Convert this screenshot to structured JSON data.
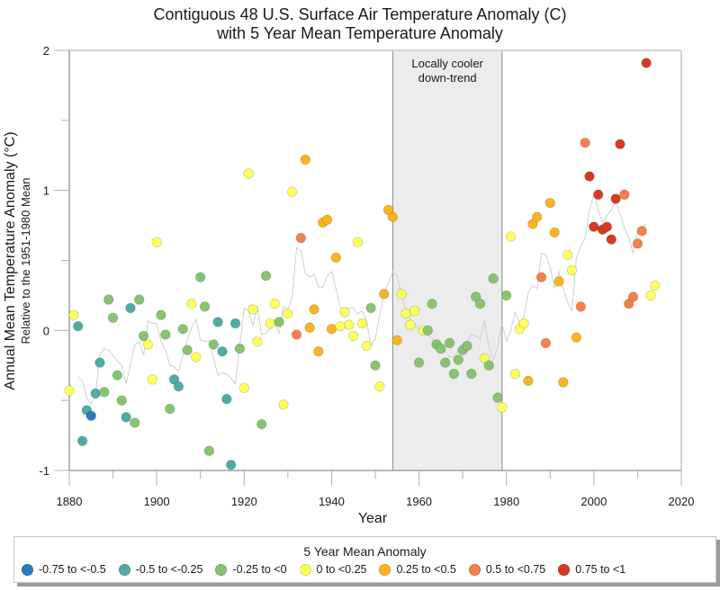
{
  "chart_data": {
    "type": "scatter",
    "title": "Contiguous 48 U.S. Surface Air Temperature Anomaly (C)",
    "subtitle": "with 5 Year Mean Temperature Anomaly",
    "xlabel": "Year",
    "ylabel": "Annual Mean Temperature Anomaly (°C)",
    "ylabel_sub": "Relative to the 1951-1980 Mean",
    "xlim": [
      1880,
      2020
    ],
    "ylim": [
      -1,
      2
    ],
    "x_ticks": [
      "1880",
      "1900",
      "1920",
      "1940",
      "1960",
      "1980",
      "2000",
      "2020"
    ],
    "y_ticks": [
      "-1",
      "0",
      "1",
      "2"
    ],
    "grid": false,
    "annotation": {
      "text_line1": "Locally cooler",
      "text_line2": "down-trend",
      "x_range": [
        1954,
        1979
      ]
    },
    "legend": {
      "title": "5 Year Mean Anomaly",
      "placement": "bottom",
      "items": [
        {
          "label": "-0.75 to <-0.5",
          "color": "#2b7bba"
        },
        {
          "label": "-0.5 to <-0.25",
          "color": "#4eaba6"
        },
        {
          "label": "-0.25 to <0",
          "color": "#87c46f"
        },
        {
          "label": "0 to <0.25",
          "color": "#ffff5e"
        },
        {
          "label": "0.25 to <0.5",
          "color": "#fbb41e"
        },
        {
          "label": "0.5 to <0.75",
          "color": "#f4804b"
        },
        {
          "label": "0.75 to <1",
          "color": "#d73a22"
        }
      ]
    },
    "series": [
      {
        "name": "Annual anomaly",
        "kind": "points",
        "points": [
          {
            "x": 1880,
            "y": -0.43,
            "c": 3
          },
          {
            "x": 1881,
            "y": 0.11,
            "c": 3
          },
          {
            "x": 1882,
            "y": 0.03,
            "c": 1
          },
          {
            "x": 1883,
            "y": -0.79,
            "c": 1
          },
          {
            "x": 1884,
            "y": -0.57,
            "c": 1
          },
          {
            "x": 1885,
            "y": -0.61,
            "c": 0
          },
          {
            "x": 1886,
            "y": -0.45,
            "c": 1
          },
          {
            "x": 1887,
            "y": -0.23,
            "c": 1
          },
          {
            "x": 1888,
            "y": -0.44,
            "c": 2
          },
          {
            "x": 1889,
            "y": 0.22,
            "c": 2
          },
          {
            "x": 1890,
            "y": 0.09,
            "c": 2
          },
          {
            "x": 1891,
            "y": -0.32,
            "c": 2
          },
          {
            "x": 1892,
            "y": -0.5,
            "c": 2
          },
          {
            "x": 1893,
            "y": -0.62,
            "c": 1
          },
          {
            "x": 1894,
            "y": 0.16,
            "c": 1
          },
          {
            "x": 1895,
            "y": -0.66,
            "c": 2
          },
          {
            "x": 1896,
            "y": 0.22,
            "c": 2
          },
          {
            "x": 1897,
            "y": -0.04,
            "c": 2
          },
          {
            "x": 1898,
            "y": -0.1,
            "c": 3
          },
          {
            "x": 1899,
            "y": -0.35,
            "c": 3
          },
          {
            "x": 1900,
            "y": 0.63,
            "c": 3
          },
          {
            "x": 1901,
            "y": 0.11,
            "c": 2
          },
          {
            "x": 1902,
            "y": -0.03,
            "c": 2
          },
          {
            "x": 1903,
            "y": -0.56,
            "c": 2
          },
          {
            "x": 1904,
            "y": -0.35,
            "c": 1
          },
          {
            "x": 1905,
            "y": -0.4,
            "c": 1
          },
          {
            "x": 1906,
            "y": 0.01,
            "c": 2
          },
          {
            "x": 1907,
            "y": -0.14,
            "c": 2
          },
          {
            "x": 1908,
            "y": 0.19,
            "c": 3
          },
          {
            "x": 1909,
            "y": -0.19,
            "c": 3
          },
          {
            "x": 1910,
            "y": 0.38,
            "c": 2
          },
          {
            "x": 1911,
            "y": 0.17,
            "c": 2
          },
          {
            "x": 1912,
            "y": -0.86,
            "c": 2
          },
          {
            "x": 1913,
            "y": -0.1,
            "c": 2
          },
          {
            "x": 1914,
            "y": 0.06,
            "c": 1
          },
          {
            "x": 1915,
            "y": -0.15,
            "c": 1
          },
          {
            "x": 1916,
            "y": -0.49,
            "c": 1
          },
          {
            "x": 1917,
            "y": -0.96,
            "c": 1
          },
          {
            "x": 1918,
            "y": 0.05,
            "c": 1
          },
          {
            "x": 1919,
            "y": -0.13,
            "c": 2
          },
          {
            "x": 1920,
            "y": -0.41,
            "c": 3
          },
          {
            "x": 1921,
            "y": 1.12,
            "c": 3
          },
          {
            "x": 1922,
            "y": 0.15,
            "c": 3
          },
          {
            "x": 1923,
            "y": -0.08,
            "c": 3
          },
          {
            "x": 1924,
            "y": -0.67,
            "c": 2
          },
          {
            "x": 1925,
            "y": 0.39,
            "c": 2
          },
          {
            "x": 1926,
            "y": 0.05,
            "c": 3
          },
          {
            "x": 1927,
            "y": 0.19,
            "c": 3
          },
          {
            "x": 1928,
            "y": 0.06,
            "c": 2
          },
          {
            "x": 1929,
            "y": -0.53,
            "c": 3
          },
          {
            "x": 1930,
            "y": 0.12,
            "c": 3
          },
          {
            "x": 1931,
            "y": 0.99,
            "c": 3
          },
          {
            "x": 1932,
            "y": -0.03,
            "c": 5
          },
          {
            "x": 1933,
            "y": 0.66,
            "c": 5
          },
          {
            "x": 1934,
            "y": 1.22,
            "c": 4
          },
          {
            "x": 1935,
            "y": 0.02,
            "c": 4
          },
          {
            "x": 1936,
            "y": 0.15,
            "c": 4
          },
          {
            "x": 1937,
            "y": -0.15,
            "c": 4
          },
          {
            "x": 1938,
            "y": 0.77,
            "c": 4
          },
          {
            "x": 1939,
            "y": 0.79,
            "c": 4
          },
          {
            "x": 1940,
            "y": 0.01,
            "c": 4
          },
          {
            "x": 1941,
            "y": 0.52,
            "c": 4
          },
          {
            "x": 1942,
            "y": 0.03,
            "c": 3
          },
          {
            "x": 1943,
            "y": 0.13,
            "c": 3
          },
          {
            "x": 1944,
            "y": 0.04,
            "c": 3
          },
          {
            "x": 1945,
            "y": -0.04,
            "c": 3
          },
          {
            "x": 1946,
            "y": 0.63,
            "c": 3
          },
          {
            "x": 1947,
            "y": 0.05,
            "c": 3
          },
          {
            "x": 1948,
            "y": -0.11,
            "c": 3
          },
          {
            "x": 1949,
            "y": 0.16,
            "c": 2
          },
          {
            "x": 1950,
            "y": -0.25,
            "c": 2
          },
          {
            "x": 1951,
            "y": -0.4,
            "c": 3
          },
          {
            "x": 1952,
            "y": 0.26,
            "c": 4
          },
          {
            "x": 1953,
            "y": 0.86,
            "c": 4
          },
          {
            "x": 1954,
            "y": 0.81,
            "c": 4
          },
          {
            "x": 1955,
            "y": -0.07,
            "c": 4
          },
          {
            "x": 1956,
            "y": 0.26,
            "c": 3
          },
          {
            "x": 1957,
            "y": 0.12,
            "c": 3
          },
          {
            "x": 1958,
            "y": 0.04,
            "c": 3
          },
          {
            "x": 1959,
            "y": 0.14,
            "c": 3
          },
          {
            "x": 1960,
            "y": -0.23,
            "c": 2
          },
          {
            "x": 1961,
            "y": 0.0,
            "c": 3
          },
          {
            "x": 1962,
            "y": 0.0,
            "c": 2
          },
          {
            "x": 1963,
            "y": 0.19,
            "c": 2
          },
          {
            "x": 1964,
            "y": -0.1,
            "c": 2
          },
          {
            "x": 1965,
            "y": -0.13,
            "c": 2
          },
          {
            "x": 1966,
            "y": -0.23,
            "c": 2
          },
          {
            "x": 1967,
            "y": -0.09,
            "c": 2
          },
          {
            "x": 1968,
            "y": -0.31,
            "c": 2
          },
          {
            "x": 1969,
            "y": -0.21,
            "c": 2
          },
          {
            "x": 1970,
            "y": -0.14,
            "c": 2
          },
          {
            "x": 1971,
            "y": -0.11,
            "c": 2
          },
          {
            "x": 1972,
            "y": -0.31,
            "c": 2
          },
          {
            "x": 1973,
            "y": 0.24,
            "c": 2
          },
          {
            "x": 1974,
            "y": 0.19,
            "c": 2
          },
          {
            "x": 1975,
            "y": -0.2,
            "c": 3
          },
          {
            "x": 1976,
            "y": -0.25,
            "c": 2
          },
          {
            "x": 1977,
            "y": 0.37,
            "c": 2
          },
          {
            "x": 1978,
            "y": -0.48,
            "c": 2
          },
          {
            "x": 1979,
            "y": -0.55,
            "c": 3
          },
          {
            "x": 1980,
            "y": 0.25,
            "c": 2
          },
          {
            "x": 1981,
            "y": 0.67,
            "c": 3
          },
          {
            "x": 1982,
            "y": -0.31,
            "c": 3
          },
          {
            "x": 1983,
            "y": 0.01,
            "c": 3
          },
          {
            "x": 1984,
            "y": 0.05,
            "c": 3
          },
          {
            "x": 1985,
            "y": -0.36,
            "c": 4
          },
          {
            "x": 1986,
            "y": 0.76,
            "c": 4
          },
          {
            "x": 1987,
            "y": 0.81,
            "c": 4
          },
          {
            "x": 1988,
            "y": 0.38,
            "c": 5
          },
          {
            "x": 1989,
            "y": -0.09,
            "c": 5
          },
          {
            "x": 1990,
            "y": 0.91,
            "c": 4
          },
          {
            "x": 1991,
            "y": 0.7,
            "c": 4
          },
          {
            "x": 1992,
            "y": 0.35,
            "c": 4
          },
          {
            "x": 1993,
            "y": -0.37,
            "c": 4
          },
          {
            "x": 1994,
            "y": 0.54,
            "c": 3
          },
          {
            "x": 1995,
            "y": 0.43,
            "c": 3
          },
          {
            "x": 1996,
            "y": -0.05,
            "c": 4
          },
          {
            "x": 1997,
            "y": 0.17,
            "c": 5
          },
          {
            "x": 1998,
            "y": 1.34,
            "c": 5
          },
          {
            "x": 1999,
            "y": 1.1,
            "c": 6
          },
          {
            "x": 2000,
            "y": 0.74,
            "c": 6
          },
          {
            "x": 2001,
            "y": 0.97,
            "c": 6
          },
          {
            "x": 2002,
            "y": 0.72,
            "c": 6
          },
          {
            "x": 2003,
            "y": 0.74,
            "c": 6
          },
          {
            "x": 2004,
            "y": 0.65,
            "c": 6
          },
          {
            "x": 2005,
            "y": 0.94,
            "c": 6
          },
          {
            "x": 2006,
            "y": 1.33,
            "c": 6
          },
          {
            "x": 2007,
            "y": 0.97,
            "c": 5
          },
          {
            "x": 2008,
            "y": 0.19,
            "c": 5
          },
          {
            "x": 2009,
            "y": 0.24,
            "c": 5
          },
          {
            "x": 2010,
            "y": 0.62,
            "c": 5
          },
          {
            "x": 2011,
            "y": 0.71,
            "c": 5
          },
          {
            "x": 2012,
            "y": 1.91,
            "c": 6
          },
          {
            "x": 2013,
            "y": 0.25,
            "c": 3
          },
          {
            "x": 2014,
            "y": 0.32,
            "c": 3
          }
        ]
      },
      {
        "name": "5 Year Mean",
        "kind": "line",
        "color": "#cfcfcf",
        "x": [
          1882,
          1883,
          1884,
          1885,
          1886,
          1887,
          1888,
          1889,
          1890,
          1891,
          1892,
          1893,
          1894,
          1895,
          1896,
          1897,
          1898,
          1899,
          1900,
          1901,
          1902,
          1903,
          1904,
          1905,
          1906,
          1907,
          1908,
          1909,
          1910,
          1911,
          1912,
          1913,
          1914,
          1915,
          1916,
          1917,
          1918,
          1919,
          1920,
          1921,
          1922,
          1923,
          1924,
          1925,
          1926,
          1927,
          1928,
          1929,
          1930,
          1931,
          1932,
          1933,
          1934,
          1935,
          1936,
          1937,
          1938,
          1939,
          1940,
          1941,
          1942,
          1943,
          1944,
          1945,
          1946,
          1947,
          1948,
          1949,
          1950,
          1951,
          1952,
          1953,
          1954,
          1955,
          1956,
          1957,
          1958,
          1959,
          1960,
          1961,
          1962,
          1963,
          1964,
          1965,
          1966,
          1967,
          1968,
          1969,
          1970,
          1971,
          1972,
          1973,
          1974,
          1975,
          1976,
          1977,
          1978,
          1979,
          1980,
          1981,
          1982,
          1983,
          1984,
          1985,
          1986,
          1987,
          1988,
          1989,
          1990,
          1991,
          1992,
          1993,
          1994,
          1995,
          1996,
          1997,
          1998,
          1999,
          2000,
          2001,
          2002,
          2003,
          2004,
          2005,
          2006,
          2007,
          2008,
          2009,
          2010,
          2011,
          2012
        ],
        "y": [
          -0.33,
          -0.36,
          -0.48,
          -0.53,
          -0.45,
          -0.17,
          -0.13,
          -0.14,
          -0.18,
          -0.22,
          -0.25,
          -0.38,
          -0.24,
          -0.1,
          -0.08,
          -0.18,
          0.07,
          0.05,
          0.05,
          -0.08,
          -0.14,
          -0.25,
          -0.26,
          -0.29,
          -0.18,
          -0.07,
          0.02,
          0.08,
          -0.07,
          -0.08,
          -0.07,
          -0.2,
          -0.32,
          -0.3,
          -0.31,
          -0.34,
          -0.38,
          -0.1,
          0.16,
          0.14,
          0.03,
          0.17,
          -0.03,
          -0.02,
          0.01,
          0.05,
          -0.02,
          0.17,
          0.15,
          0.24,
          0.59,
          0.57,
          0.41,
          0.38,
          0.4,
          0.31,
          0.31,
          0.39,
          0.42,
          0.3,
          0.16,
          0.16,
          0.16,
          0.16,
          0.12,
          0.14,
          0.07,
          -0.11,
          -0.06,
          0.11,
          0.26,
          0.34,
          0.42,
          0.39,
          0.25,
          0.14,
          0.08,
          0.05,
          0.01,
          -0.02,
          -0.03,
          -0.06,
          -0.08,
          -0.12,
          -0.15,
          -0.19,
          -0.19,
          -0.14,
          -0.13,
          -0.08,
          -0.03,
          -0.04,
          -0.06,
          0.07,
          -0.12,
          -0.21,
          -0.12,
          0.05,
          -0.08,
          0.0,
          0.13,
          0.05,
          0.1,
          0.27,
          0.32,
          0.3,
          0.55,
          0.54,
          0.45,
          0.3,
          0.42,
          0.3,
          0.2,
          0.14,
          0.52,
          0.6,
          0.66,
          0.86,
          0.97,
          0.86,
          0.77,
          0.82,
          0.86,
          0.92,
          0.83,
          0.73,
          0.66,
          0.55,
          0.72,
          0.74,
          0.76
        ]
      }
    ]
  }
}
